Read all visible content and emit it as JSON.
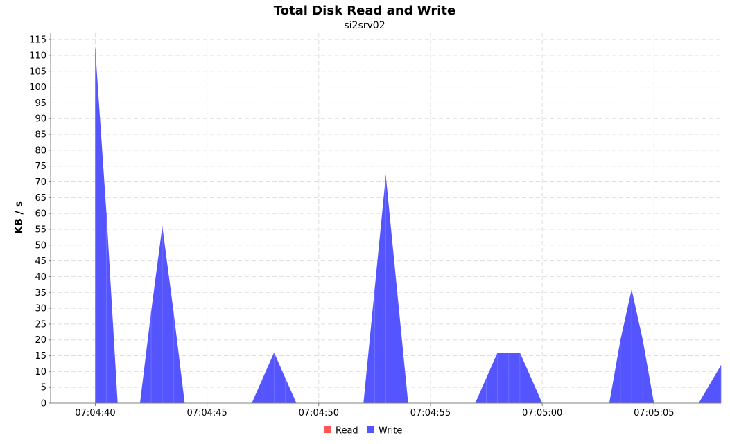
{
  "chart_data": {
    "type": "area",
    "title": "Total Disk Read and Write",
    "subtitle": "si2srv02",
    "xlabel": "",
    "ylabel": "KB / s",
    "x_unit": "time (hh:mm:ss)",
    "x_range": [
      "07:04:38",
      "07:05:08"
    ],
    "y_range": [
      0,
      117
    ],
    "x_ticks": [
      "07:04:40",
      "07:04:45",
      "07:04:50",
      "07:04:55",
      "07:05:00",
      "07:05:05"
    ],
    "y_ticks": [
      0,
      5,
      10,
      15,
      20,
      25,
      30,
      35,
      40,
      45,
      50,
      55,
      60,
      65,
      70,
      75,
      80,
      85,
      90,
      95,
      100,
      105,
      110,
      115
    ],
    "grid": true,
    "legend_position": "bottom",
    "series": [
      {
        "name": "Read",
        "color": "#ff5555",
        "points": [
          [
            "07:04:40",
            0
          ],
          [
            "07:05:08",
            0
          ]
        ]
      },
      {
        "name": "Write",
        "color": "#5555ff",
        "points": [
          [
            "07:04:40",
            0
          ],
          [
            "07:04:40",
            112
          ],
          [
            "07:04:40.5",
            60
          ],
          [
            "07:04:41",
            0
          ],
          [
            "07:04:42",
            0
          ],
          [
            "07:04:42.5",
            29
          ],
          [
            "07:04:43",
            56
          ],
          [
            "07:04:43.5",
            29
          ],
          [
            "07:04:44",
            0
          ],
          [
            "07:04:47",
            0
          ],
          [
            "07:04:47.5",
            8
          ],
          [
            "07:04:48",
            16
          ],
          [
            "07:04:48.5",
            8
          ],
          [
            "07:04:49",
            0
          ],
          [
            "07:04:52",
            0
          ],
          [
            "07:04:52.5",
            36
          ],
          [
            "07:04:53",
            72
          ],
          [
            "07:04:53.5",
            36
          ],
          [
            "07:04:54",
            0
          ],
          [
            "07:04:57",
            0
          ],
          [
            "07:04:57.5",
            8
          ],
          [
            "07:04:58",
            16
          ],
          [
            "07:04:58.5",
            16
          ],
          [
            "07:04:59",
            16
          ],
          [
            "07:05:00",
            0
          ],
          [
            "07:05:03",
            0
          ],
          [
            "07:05:03.5",
            20
          ],
          [
            "07:05:04",
            36
          ],
          [
            "07:05:04.5",
            20
          ],
          [
            "07:05:05",
            0
          ],
          [
            "07:05:07",
            0
          ],
          [
            "07:05:08",
            12
          ]
        ]
      }
    ]
  }
}
